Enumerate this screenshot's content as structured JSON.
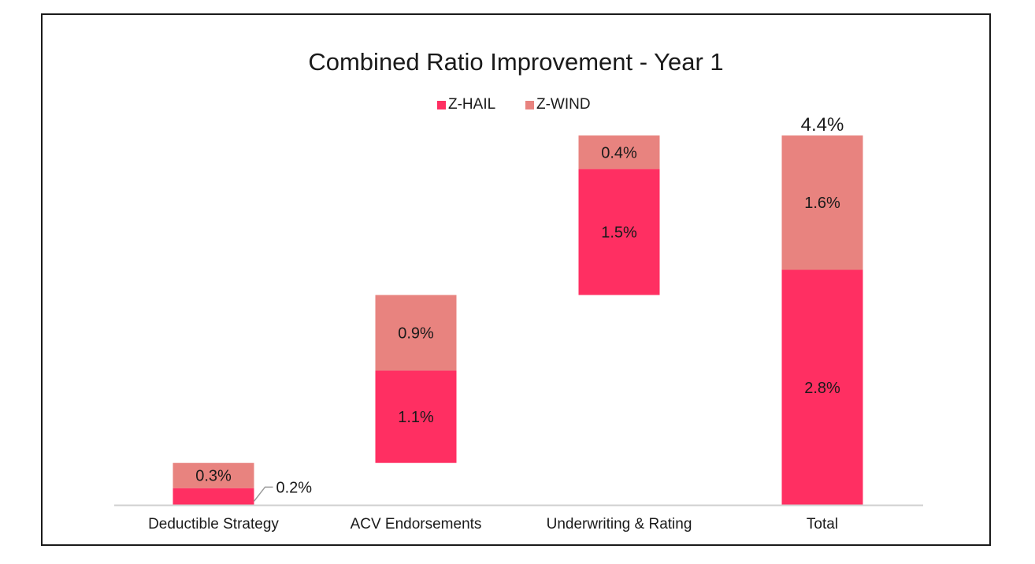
{
  "chart_data": {
    "type": "bar",
    "subtype": "stacked-waterfall",
    "title": "Combined Ratio Improvement - Year 1",
    "categories": [
      "Deductible Strategy",
      "ACV Endorsements",
      "Underwriting & Rating",
      "Total"
    ],
    "series": [
      {
        "name": "Z-HAIL",
        "values": [
          0.2,
          1.1,
          1.5,
          2.8
        ],
        "color": "#ff2f62"
      },
      {
        "name": "Z-WIND",
        "values": [
          0.3,
          0.9,
          0.4,
          1.6
        ],
        "color": "#e8837f"
      }
    ],
    "base_offsets": [
      0.0,
      0.5,
      2.5,
      0.0
    ],
    "data_labels": [
      {
        "category": "Deductible Strategy",
        "series": "Z-HAIL",
        "text": "0.2%"
      },
      {
        "category": "Deductible Strategy",
        "series": "Z-WIND",
        "text": "0.3%"
      },
      {
        "category": "ACV Endorsements",
        "series": "Z-HAIL",
        "text": "1.1%"
      },
      {
        "category": "ACV Endorsements",
        "series": "Z-WIND",
        "text": "0.9%"
      },
      {
        "category": "Underwriting & Rating",
        "series": "Z-HAIL",
        "text": "1.5%"
      },
      {
        "category": "Underwriting & Rating",
        "series": "Z-WIND",
        "text": "0.4%"
      },
      {
        "category": "Total",
        "series": "Z-HAIL",
        "text": "2.8%"
      },
      {
        "category": "Total",
        "series": "Z-WIND",
        "text": "1.6%"
      }
    ],
    "total_label": "4.4%",
    "ylim": [
      0,
      4.4
    ],
    "legend": {
      "position": "top"
    },
    "grid": false,
    "xlabel": "",
    "ylabel": ""
  }
}
